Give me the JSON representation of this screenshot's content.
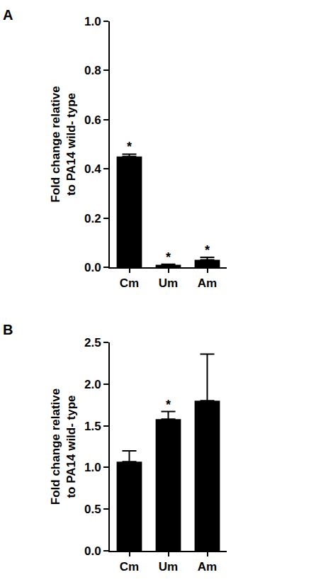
{
  "chart_data": [
    {
      "type": "bar",
      "panel": "A",
      "categories": [
        "Cm",
        "Um",
        "Am"
      ],
      "values": [
        0.45,
        0.01,
        0.03
      ],
      "errors": [
        0.01,
        0.002,
        0.01
      ],
      "color": "#000000",
      "y_label": [
        "Fold change relative",
        "to PA14 wild- type"
      ],
      "ylim": [
        0,
        1
      ],
      "yticks": [
        {
          "value": 0,
          "label": "0.0"
        },
        0.2,
        0.4,
        0.6,
        0.8,
        {
          "value": 1,
          "label": "1.0"
        }
      ],
      "annotations": [
        {
          "category": "Cm",
          "text": "*"
        },
        {
          "category": "Um",
          "text": "*"
        },
        {
          "category": "Am",
          "text": "*"
        }
      ]
    },
    {
      "type": "bar",
      "panel": "B",
      "categories": [
        "Cm",
        "Um",
        "Am"
      ],
      "values": [
        1.07,
        1.58,
        1.8
      ],
      "errors": [
        0.13,
        0.09,
        0.56
      ],
      "color": "#000000",
      "y_label": [
        "Fold change relative",
        "to PA14 wild- type"
      ],
      "ylim": [
        0,
        2.5
      ],
      "yticks": [
        {
          "value": 0,
          "label": "0.0"
        },
        0.5,
        {
          "value": 1,
          "label": "1.0"
        },
        1.5,
        {
          "value": 2,
          "label": "2.0"
        },
        2.5
      ],
      "annotations": [
        {
          "category": "Um",
          "text": "*"
        }
      ]
    }
  ]
}
